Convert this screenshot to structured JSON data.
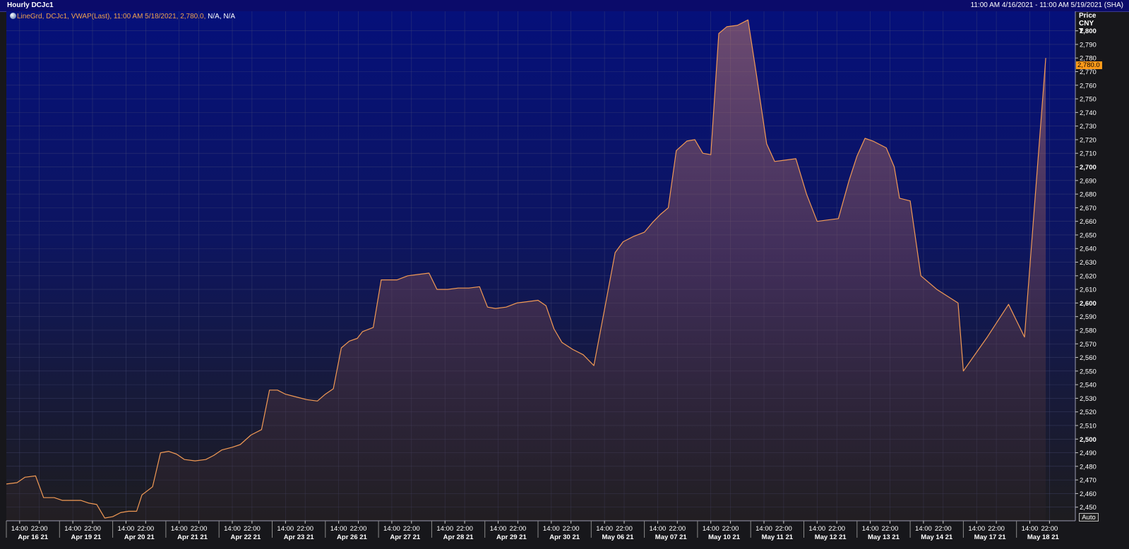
{
  "window": {
    "title": "Hourly DCJc1",
    "range": "11:00 AM 4/16/2021 - 11:00 AM 5/19/2021 (SHA)"
  },
  "legend": {
    "series": "LineGrd, DCJc1, VWAP(Last), 11:00 AM 5/18/2021, 2,780.0,",
    "tail": "N/A, N/A"
  },
  "axis": {
    "unit_lines": [
      "Price",
      "CNY",
      "T"
    ],
    "last_price_label": "2,780.0",
    "auto_label": "Auto"
  },
  "colors": {
    "line": "#f29a55",
    "top_bg": "#05107a",
    "bottom_bg": "#1d1c1f",
    "grid": "#4a4f78",
    "price_tag": "#ff9a1a"
  },
  "chart_data": {
    "type": "area",
    "instrument": "DCJc1",
    "ylim": [
      2440,
      2805
    ],
    "y_ticks": [
      2450,
      2460,
      2470,
      2480,
      2490,
      2500,
      2510,
      2520,
      2530,
      2540,
      2550,
      2560,
      2570,
      2580,
      2590,
      2600,
      2610,
      2620,
      2630,
      2640,
      2650,
      2660,
      2670,
      2680,
      2690,
      2700,
      2710,
      2720,
      2730,
      2740,
      2750,
      2760,
      2770,
      2780,
      2790,
      2800
    ],
    "y_ticks_bold": [
      2500,
      2600,
      2700,
      2800
    ],
    "days": [
      "Apr 16 21",
      "Apr 19 21",
      "Apr 20 21",
      "Apr 21 21",
      "Apr 22 21",
      "Apr 23 21",
      "Apr 26 21",
      "Apr 27 21",
      "Apr 28 21",
      "Apr 29 21",
      "Apr 30 21",
      "May 06 21",
      "May 07 21",
      "May 10 21",
      "May 11 21",
      "May 12 21",
      "May 13 21",
      "May 14 21",
      "May 17 21",
      "May 18 21"
    ],
    "hour_ticks": [
      "14:00",
      "22:00"
    ],
    "grid": true,
    "legend_position": "top-left",
    "last_value": 2780.0,
    "points": [
      [
        0.0,
        2467
      ],
      [
        0.2,
        2468
      ],
      [
        0.35,
        2472
      ],
      [
        0.55,
        2473
      ],
      [
        0.7,
        2457
      ],
      [
        0.9,
        2457
      ],
      [
        1.05,
        2455
      ],
      [
        1.25,
        2455
      ],
      [
        1.4,
        2455
      ],
      [
        1.55,
        2453
      ],
      [
        1.7,
        2452
      ],
      [
        1.85,
        2442
      ],
      [
        2.0,
        2443
      ],
      [
        2.15,
        2446
      ],
      [
        2.3,
        2447
      ],
      [
        2.45,
        2447
      ],
      [
        2.55,
        2459
      ],
      [
        2.75,
        2465
      ],
      [
        2.9,
        2490
      ],
      [
        3.05,
        2491
      ],
      [
        3.2,
        2489
      ],
      [
        3.35,
        2485
      ],
      [
        3.55,
        2484
      ],
      [
        3.75,
        2485
      ],
      [
        3.9,
        2488
      ],
      [
        4.05,
        2492
      ],
      [
        4.25,
        2494
      ],
      [
        4.4,
        2496
      ],
      [
        4.6,
        2503
      ],
      [
        4.8,
        2507
      ],
      [
        4.95,
        2536
      ],
      [
        5.1,
        2536
      ],
      [
        5.25,
        2533
      ],
      [
        5.45,
        2531
      ],
      [
        5.65,
        2529
      ],
      [
        5.85,
        2528
      ],
      [
        6.0,
        2533
      ],
      [
        6.15,
        2537
      ],
      [
        6.3,
        2567
      ],
      [
        6.45,
        2572
      ],
      [
        6.6,
        2574
      ],
      [
        6.7,
        2579
      ],
      [
        6.9,
        2582
      ],
      [
        7.05,
        2617
      ],
      [
        7.2,
        2617
      ],
      [
        7.35,
        2617
      ],
      [
        7.55,
        2620
      ],
      [
        7.75,
        2621
      ],
      [
        7.95,
        2622
      ],
      [
        8.1,
        2610
      ],
      [
        8.3,
        2610
      ],
      [
        8.5,
        2611
      ],
      [
        8.7,
        2611
      ],
      [
        8.9,
        2612
      ],
      [
        9.05,
        2597
      ],
      [
        9.2,
        2596
      ],
      [
        9.4,
        2597
      ],
      [
        9.6,
        2600
      ],
      [
        9.8,
        2601
      ],
      [
        10.0,
        2602
      ],
      [
        10.15,
        2598
      ],
      [
        10.3,
        2581
      ],
      [
        10.45,
        2571
      ],
      [
        10.65,
        2566
      ],
      [
        10.85,
        2562
      ],
      [
        11.05,
        2554
      ],
      [
        11.25,
        2595
      ],
      [
        11.45,
        2637
      ],
      [
        11.6,
        2645
      ],
      [
        11.8,
        2649
      ],
      [
        12.0,
        2652
      ],
      [
        12.15,
        2659
      ],
      [
        12.3,
        2665
      ],
      [
        12.45,
        2670
      ],
      [
        12.6,
        2712
      ],
      [
        12.8,
        2719
      ],
      [
        12.95,
        2720
      ],
      [
        13.1,
        2710
      ],
      [
        13.25,
        2709
      ],
      [
        13.4,
        2798
      ],
      [
        13.55,
        2803
      ],
      [
        13.75,
        2804
      ],
      [
        13.95,
        2808
      ],
      [
        14.1,
        2770
      ],
      [
        14.3,
        2717
      ],
      [
        14.45,
        2704
      ],
      [
        14.65,
        2705
      ],
      [
        14.85,
        2706
      ],
      [
        15.05,
        2680
      ],
      [
        15.25,
        2660
      ],
      [
        15.45,
        2661
      ],
      [
        15.65,
        2662
      ],
      [
        15.85,
        2690
      ],
      [
        16.0,
        2708
      ],
      [
        16.15,
        2721
      ],
      [
        16.3,
        2719
      ],
      [
        16.55,
        2714
      ],
      [
        16.7,
        2700
      ],
      [
        16.8,
        2677
      ],
      [
        17.0,
        2675
      ],
      [
        17.2,
        2620
      ],
      [
        17.5,
        2610
      ],
      [
        17.9,
        2600
      ],
      [
        18.0,
        2550
      ],
      [
        18.45,
        2575
      ],
      [
        18.85,
        2599
      ],
      [
        19.15,
        2575
      ],
      [
        19.55,
        2780
      ]
    ]
  }
}
